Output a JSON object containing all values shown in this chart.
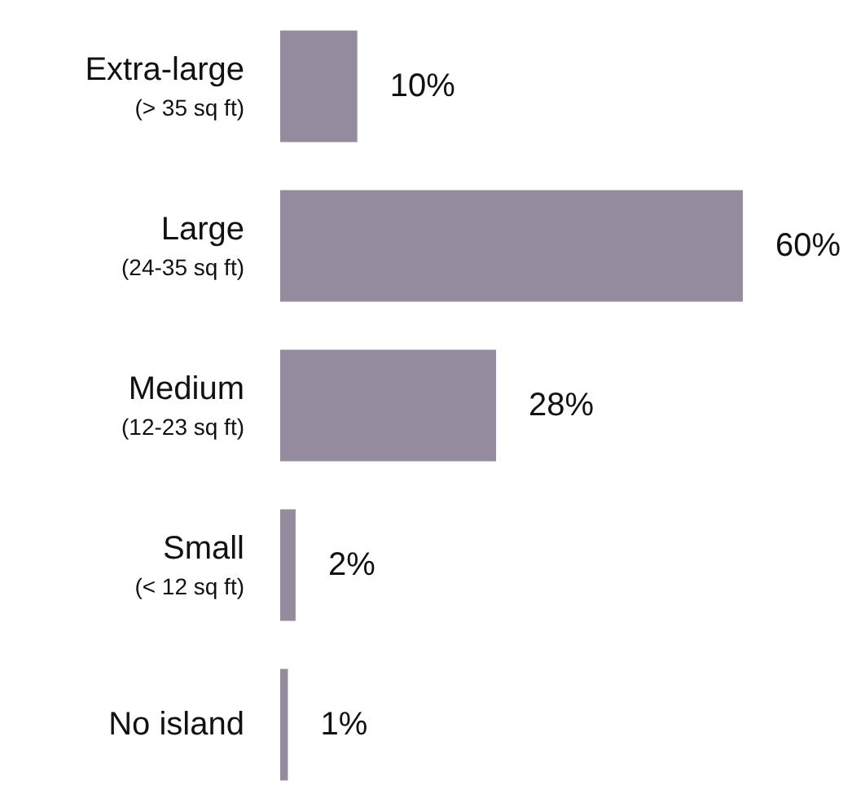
{
  "chart_data": {
    "type": "bar",
    "orientation": "horizontal",
    "categories": [
      "Extra-large\n(> 35 sq ft)",
      "Large\n(24-35 sq ft)",
      "Medium\n(12-23 sq ft)",
      "Small\n(< 12 sq ft)",
      "No island"
    ],
    "values": [
      10,
      60,
      28,
      2,
      1
    ],
    "value_labels": [
      "10%",
      "60%",
      "28%",
      "2%",
      "1%"
    ],
    "color": "#958b9f"
  }
}
